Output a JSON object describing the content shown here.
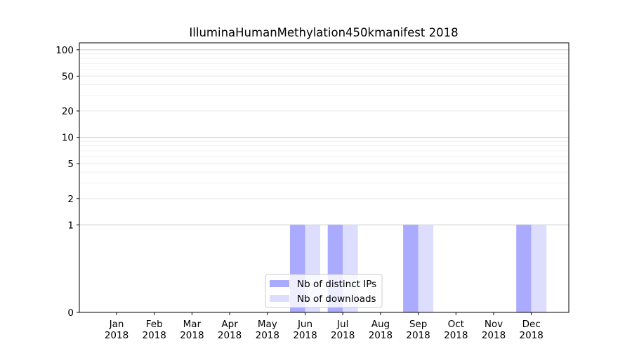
{
  "chart_data": {
    "type": "bar",
    "title": "IlluminaHumanMethylation450kmanifest 2018",
    "xlabel": "",
    "ylabel": "",
    "y_scale": "symlog",
    "ylim": [
      0,
      120
    ],
    "grid": "horizontal",
    "legend_position": "lower center",
    "categories": [
      [
        "Jan",
        "2018"
      ],
      [
        "Feb",
        "2018"
      ],
      [
        "Mar",
        "2018"
      ],
      [
        "Apr",
        "2018"
      ],
      [
        "May",
        "2018"
      ],
      [
        "Jun",
        "2018"
      ],
      [
        "Jul",
        "2018"
      ],
      [
        "Aug",
        "2018"
      ],
      [
        "Sep",
        "2018"
      ],
      [
        "Oct",
        "2018"
      ],
      [
        "Nov",
        "2018"
      ],
      [
        "Dec",
        "2018"
      ]
    ],
    "y_ticks": [
      0,
      1,
      2,
      5,
      10,
      20,
      50,
      100
    ],
    "series": [
      {
        "name": "Nb of distinct IPs",
        "color": "#aaaaff",
        "values": [
          0,
          0,
          0,
          0,
          0,
          1,
          1,
          0,
          1,
          0,
          0,
          1
        ]
      },
      {
        "name": "Nb of downloads",
        "color": "#ddddff",
        "values": [
          0,
          0,
          0,
          0,
          0,
          1,
          1,
          0,
          1,
          0,
          0,
          1
        ]
      }
    ]
  }
}
